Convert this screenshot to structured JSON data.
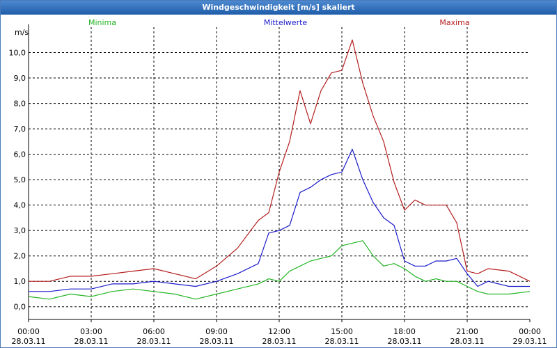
{
  "window": {
    "title": "Windgeschwindigkeit [m/s] skaliert"
  },
  "chart_data": {
    "type": "line",
    "title": "Windgeschwindigkeit [m/s] skaliert",
    "ylabel": "m/s",
    "xlabel": "",
    "ylim": [
      -0.5,
      11.0
    ],
    "xlim": [
      0,
      24
    ],
    "grid": true,
    "legend_position": "top",
    "y_ticks": [
      0,
      1,
      2,
      3,
      4,
      5,
      6,
      7,
      8,
      9,
      10
    ],
    "y_tick_labels": [
      "0,0",
      "1,0",
      "2,0",
      "3,0",
      "4,0",
      "5,0",
      "6,0",
      "7,0",
      "8,0",
      "9,0",
      "10,0"
    ],
    "x_ticks": [
      {
        "hour": 0,
        "time": "00:00",
        "date": "28.03.11"
      },
      {
        "hour": 3,
        "time": "03:00",
        "date": "28.03.11"
      },
      {
        "hour": 6,
        "time": "06:00",
        "date": "28.03.11"
      },
      {
        "hour": 9,
        "time": "09:00",
        "date": "28.03.11"
      },
      {
        "hour": 12,
        "time": "12:00",
        "date": "28.03.11"
      },
      {
        "hour": 15,
        "time": "15:00",
        "date": "28.03.11"
      },
      {
        "hour": 18,
        "time": "18:00",
        "date": "28.03.11"
      },
      {
        "hour": 21,
        "time": "21:00",
        "date": "28.03.11"
      },
      {
        "hour": 24,
        "time": "00:00",
        "date": "29.03.11"
      }
    ],
    "x": [
      0,
      1,
      2,
      3,
      4,
      5,
      6,
      7,
      8,
      9,
      10,
      11,
      11.5,
      12,
      12.5,
      13,
      13.5,
      14,
      14.5,
      15,
      15.5,
      16,
      16.5,
      17,
      17.5,
      18,
      18.5,
      19,
      19.5,
      20,
      20.5,
      21,
      21.5,
      22,
      23,
      24
    ],
    "series": [
      {
        "name": "Minima",
        "color": "#22b422",
        "values": [
          0.4,
          0.3,
          0.5,
          0.4,
          0.6,
          0.7,
          0.6,
          0.5,
          0.3,
          0.5,
          0.7,
          0.9,
          1.1,
          1.0,
          1.4,
          1.6,
          1.8,
          1.9,
          2.0,
          2.4,
          2.5,
          2.6,
          2.0,
          1.6,
          1.7,
          1.5,
          1.2,
          1.0,
          1.1,
          1.0,
          1.0,
          0.8,
          0.6,
          0.5,
          0.5,
          0.6
        ]
      },
      {
        "name": "Mittelwerte",
        "color": "#1a1acc",
        "values": [
          0.6,
          0.6,
          0.7,
          0.7,
          0.9,
          0.9,
          1.0,
          0.9,
          0.8,
          1.0,
          1.3,
          1.7,
          2.9,
          3.0,
          3.2,
          4.5,
          4.7,
          5.0,
          5.2,
          5.3,
          6.2,
          5.0,
          4.1,
          3.5,
          3.2,
          1.8,
          1.6,
          1.6,
          1.8,
          1.8,
          1.9,
          1.3,
          0.8,
          1.0,
          0.8,
          0.8
        ]
      },
      {
        "name": "Maxima",
        "color": "#b41e1e",
        "values": [
          1.0,
          1.0,
          1.2,
          1.2,
          1.3,
          1.4,
          1.5,
          1.3,
          1.1,
          1.6,
          2.3,
          3.4,
          3.7,
          5.3,
          6.5,
          8.5,
          7.2,
          8.5,
          9.2,
          9.3,
          10.5,
          8.8,
          7.5,
          6.5,
          4.9,
          3.8,
          4.2,
          4.0,
          4.0,
          4.0,
          3.3,
          1.4,
          1.3,
          1.5,
          1.4,
          1.0
        ]
      }
    ]
  }
}
